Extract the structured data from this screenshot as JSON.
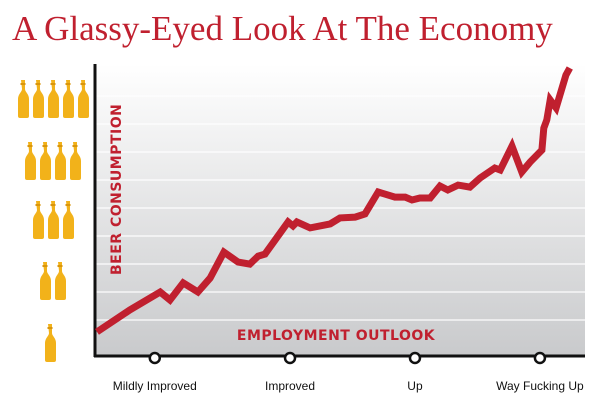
{
  "chart_data": {
    "type": "line",
    "title": "A Glassy-Eyed Look At The Economy",
    "x_label": "EMPLOYMENT OUTLOOK",
    "y_label": "BEER CONSUMPTION",
    "x": [
      0.4,
      7.1,
      13.3,
      15.3,
      18.0,
      21.0,
      23.5,
      26.3,
      29.2,
      31.6,
      33.3,
      34.7,
      39.4,
      40.4,
      41.2,
      43.9,
      48.0,
      50.0,
      53.1,
      55.1,
      57.8,
      61.2,
      63.3,
      64.7,
      66.3,
      68.4,
      70.4,
      72.0,
      74.1,
      76.5,
      78.6,
      81.6,
      82.7,
      85.1,
      87.1,
      88.8,
      91.2,
      91.6,
      92.2,
      92.9,
      94.1,
      96.1,
      96.9
    ],
    "series": [
      {
        "color": "#c0202f",
        "values": [
          8.1,
          15.8,
          22.1,
          19.3,
          25.3,
          22.1,
          27.0,
          36.1,
          32.6,
          31.9,
          34.7,
          35.4,
          46.7,
          45.3,
          46.7,
          44.6,
          46.0,
          48.1,
          48.4,
          49.5,
          57.2,
          55.4,
          55.4,
          54.4,
          55.1,
          55.1,
          59.3,
          57.9,
          59.6,
          58.9,
          62.1,
          65.6,
          64.9,
          73.3,
          64.2,
          67.7,
          71.9,
          79.6,
          82.5,
          89.5,
          86.7,
          98.2,
          100.7
        ]
      }
    ],
    "xlim": [
      0,
      100
    ],
    "ylim": [
      0,
      102
    ],
    "xticks": [
      {
        "value": 12.2,
        "label": "Mildly Improved"
      },
      {
        "value": 39.8,
        "label": "Improved"
      },
      {
        "value": 65.3,
        "label": "Up"
      },
      {
        "value": 90.8,
        "label": "Way Fucking Up"
      }
    ]
  }
}
